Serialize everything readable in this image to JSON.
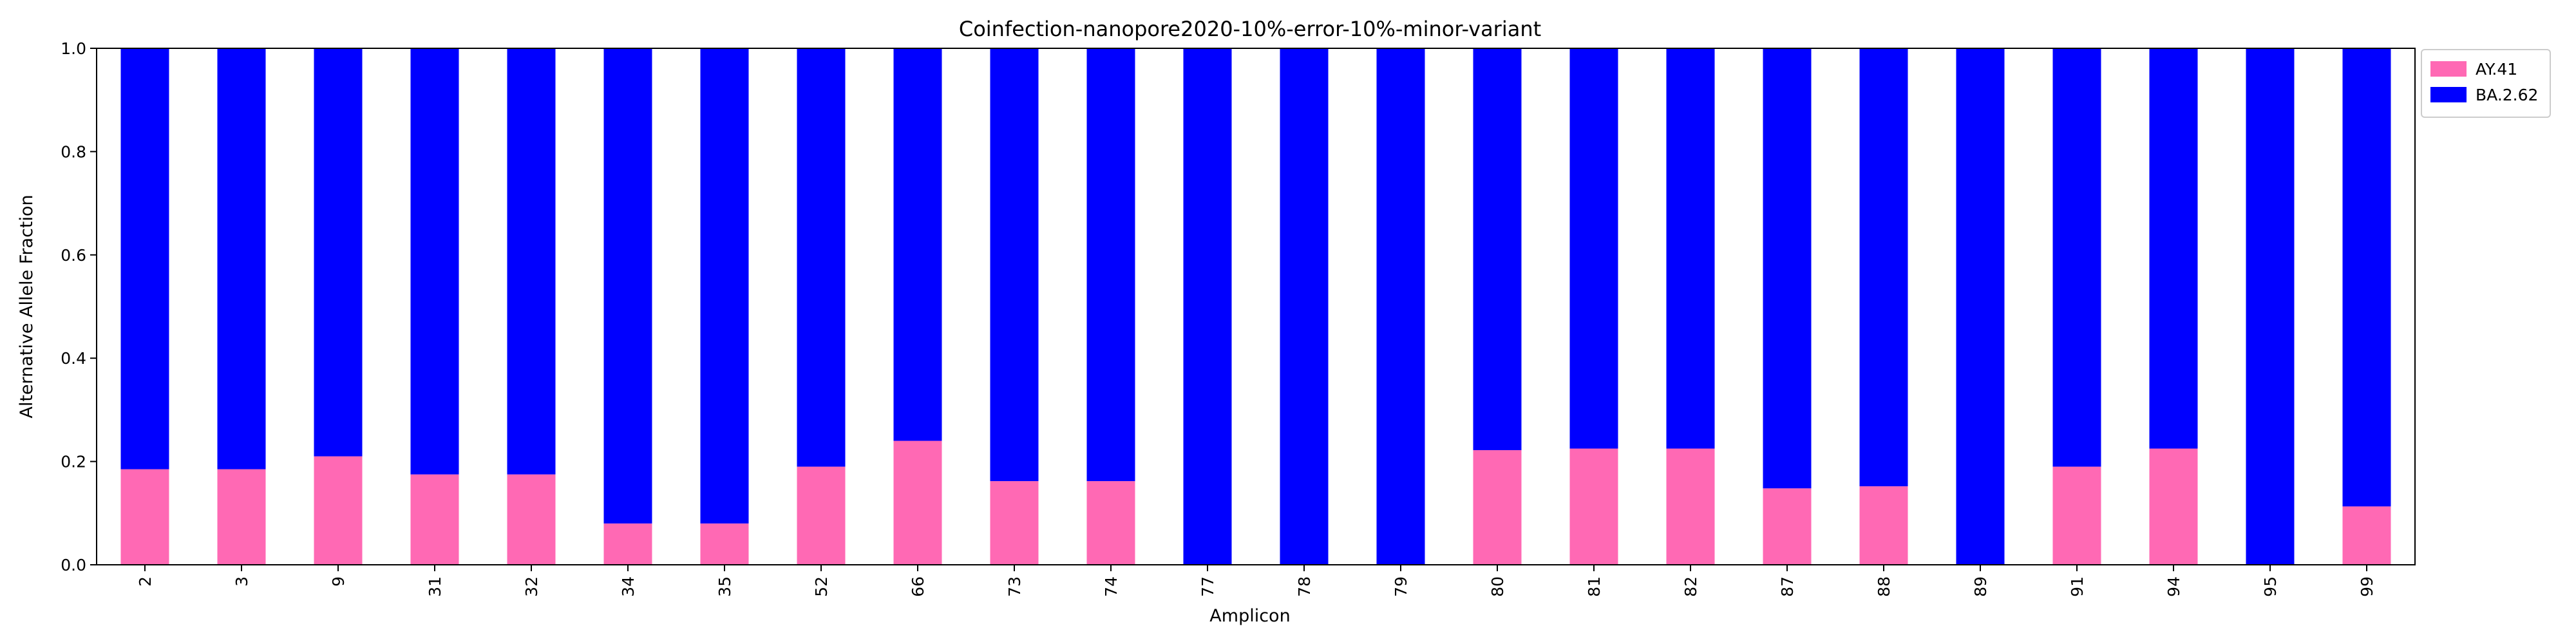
{
  "chart_data": {
    "type": "bar",
    "stacked": true,
    "title": "Coinfection-nanopore2020-10%-error-10%-minor-variant",
    "xlabel": "Amplicon",
    "ylabel": "Alternative Allele Fraction",
    "ylim": [
      0,
      1.0
    ],
    "yticks": [
      "0.0",
      "0.2",
      "0.4",
      "0.6",
      "0.8",
      "1.0"
    ],
    "categories": [
      "2",
      "3",
      "9",
      "31",
      "32",
      "34",
      "35",
      "52",
      "66",
      "73",
      "74",
      "77",
      "78",
      "79",
      "80",
      "81",
      "82",
      "87",
      "88",
      "89",
      "91",
      "94",
      "95",
      "99"
    ],
    "series": [
      {
        "name": "AY.41",
        "color": "#ff69b4",
        "values": [
          0.185,
          0.185,
          0.21,
          0.175,
          0.175,
          0.08,
          0.08,
          0.19,
          0.24,
          0.162,
          0.162,
          0.0,
          0.0,
          0.0,
          0.222,
          0.225,
          0.225,
          0.148,
          0.152,
          0.0,
          0.19,
          0.225,
          0.0,
          0.113
        ]
      },
      {
        "name": "BA.2.62",
        "color": "#0000ff",
        "values": [
          0.815,
          0.815,
          0.79,
          0.825,
          0.825,
          0.92,
          0.92,
          0.81,
          0.76,
          0.838,
          0.838,
          1.0,
          1.0,
          1.0,
          0.778,
          0.775,
          0.775,
          0.852,
          0.848,
          1.0,
          0.81,
          0.775,
          1.0,
          0.887
        ]
      }
    ],
    "grid": false,
    "legend": "upper-right-outside"
  }
}
